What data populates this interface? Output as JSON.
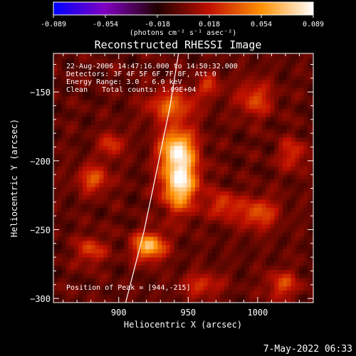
{
  "chart_data": {
    "type": "heatmap",
    "title": "Reconstructed RHESSI Image",
    "xlabel": "Heliocentric X (arcsec)",
    "ylabel": "Heliocentric Y (arcsec)",
    "xlim": [
      853,
      1040
    ],
    "ylim": [
      -303,
      -122
    ],
    "x_ticks": [
      900,
      950,
      1000
    ],
    "y_ticks": [
      -150,
      -200,
      -250,
      -300
    ],
    "grid": false,
    "annotations": {
      "time_range": "22-Aug-2006 14:47:16.000 to 14:50:32.000",
      "detectors": "Detectors: 3F 4F 5F 6F 7F 8F, Att 0",
      "energy": "Energy Range: 3.0 - 6.0 keV",
      "method": "Clean",
      "counts": "Total counts: 1.09E+04",
      "peak": "Position of Peak = [944,-215]"
    },
    "colorbar": {
      "min": -0.089,
      "max": 0.089,
      "tick_labels": [
        "-0.089",
        "-0.054",
        "-0.018",
        "0.018",
        "0.054",
        "0.089"
      ],
      "unit": "(photons cm⁻² s⁻¹ asec⁻²)",
      "colors": [
        "#0000ff",
        "#8000c0",
        "#200000",
        "#c01000",
        "#ff9000",
        "#ffffff"
      ]
    },
    "peak": {
      "x": 944,
      "y": -215
    },
    "sources": [
      {
        "x": 944,
        "y": -215,
        "sx": 9,
        "sy": 14,
        "amp": 0.089
      },
      {
        "x": 942,
        "y": -190,
        "sx": 9,
        "sy": 10,
        "amp": 0.07
      },
      {
        "x": 922,
        "y": -262,
        "sx": 8,
        "sy": 7,
        "amp": 0.072
      },
      {
        "x": 938,
        "y": -160,
        "sx": 12,
        "sy": 8,
        "amp": 0.045
      },
      {
        "x": 882,
        "y": -213,
        "sx": 8,
        "sy": 7,
        "amp": 0.04
      },
      {
        "x": 895,
        "y": -188,
        "sx": 6,
        "sy": 6,
        "amp": 0.035
      },
      {
        "x": 998,
        "y": -155,
        "sx": 9,
        "sy": 9,
        "amp": 0.035
      },
      {
        "x": 1000,
        "y": -238,
        "sx": 10,
        "sy": 8,
        "amp": 0.04
      },
      {
        "x": 1018,
        "y": -290,
        "sx": 8,
        "sy": 7,
        "amp": 0.035
      },
      {
        "x": 960,
        "y": -290,
        "sx": 10,
        "sy": 6,
        "amp": 0.03
      },
      {
        "x": 880,
        "y": -265,
        "sx": 7,
        "sy": 7,
        "amp": 0.035
      },
      {
        "x": 1025,
        "y": -195,
        "sx": 7,
        "sy": 8,
        "amp": 0.03
      },
      {
        "x": 975,
        "y": -232,
        "sx": 7,
        "sy": 7,
        "amp": 0.035
      },
      {
        "x": 965,
        "y": -145,
        "sx": 6,
        "sy": 6,
        "amp": 0.03
      }
    ],
    "limb": [
      {
        "x": 905,
        "y": -303
      },
      {
        "x": 918,
        "y": -252
      },
      {
        "x": 928,
        "y": -204
      },
      {
        "x": 937,
        "y": -160
      },
      {
        "x": 943,
        "y": -122
      }
    ],
    "footer_date": "7-May-2022 06:33"
  }
}
